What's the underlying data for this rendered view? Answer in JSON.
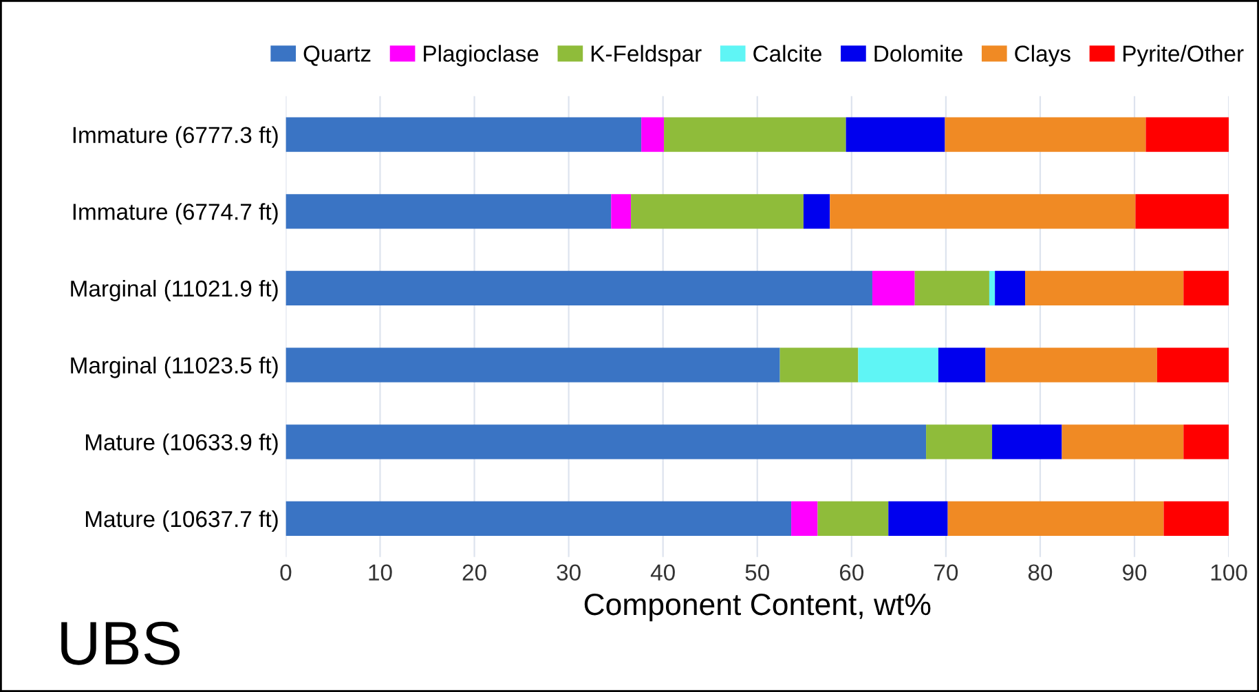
{
  "chart_data": {
    "type": "bar",
    "orientation": "horizontal",
    "stacked": true,
    "xlabel": "Component Content, wt%",
    "categories": [
      "Immature (6777.3 ft)",
      "Immature (6774.7 ft)",
      "Marginal (11021.9 ft)",
      "Marginal (11023.5 ft)",
      "Mature (10633.9 ft)",
      "Mature (10637.7 ft)"
    ],
    "series": [
      {
        "name": "Quartz",
        "color": "#3a74c4",
        "values": [
          37.7,
          34.5,
          62.2,
          52.4,
          67.9,
          53.6
        ]
      },
      {
        "name": "Plagioclase",
        "color": "#ff00ff",
        "values": [
          2.4,
          2.1,
          4.5,
          null,
          null,
          2.8
        ]
      },
      {
        "name": "K-Feldspar",
        "color": "#8fbc3a",
        "values": [
          19.3,
          18.3,
          7.9,
          8.3,
          7.0,
          7.5
        ]
      },
      {
        "name": "Calcite",
        "color": "#5ff5f5",
        "values": [
          null,
          null,
          0.6,
          8.5,
          null,
          null
        ]
      },
      {
        "name": "Dolomite",
        "color": "#0000ee",
        "values": [
          10.5,
          2.8,
          3.2,
          5.0,
          7.4,
          6.3
        ]
      },
      {
        "name": "Clays",
        "color": "#f08a24",
        "values": [
          21.3,
          32.4,
          16.8,
          18.2,
          12.9,
          22.9
        ]
      },
      {
        "name": "Pyrite/Other",
        "color": "#ff0000",
        "values": [
          8.8,
          9.9,
          4.8,
          7.6,
          4.8,
          6.9
        ]
      }
    ],
    "xlim": [
      0,
      100
    ],
    "xticks": [
      0,
      10,
      20,
      30,
      40,
      50,
      60,
      70,
      80,
      90,
      100
    ],
    "grid": "x",
    "legend": "top",
    "annotations": [
      "UBS"
    ]
  }
}
